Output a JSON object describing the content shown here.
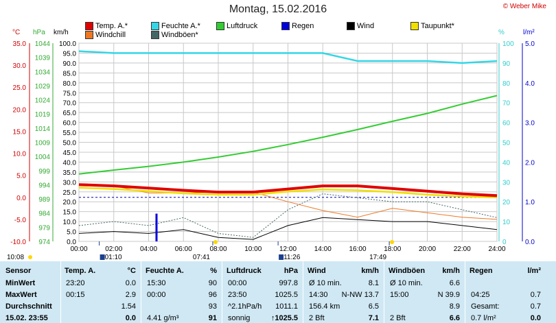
{
  "title": "Montag, 15.02.2016",
  "copyright": "© Weber Mike",
  "units": {
    "temp": "°C",
    "hpa": "hPa",
    "kmh": "km/h",
    "pct": "%",
    "lm2": "l/m²"
  },
  "legend": [
    {
      "label": "Temp. A.*",
      "color": "#e00000"
    },
    {
      "label": "Feuchte A.*",
      "color": "#33d6e6"
    },
    {
      "label": "Luftdruck",
      "color": "#33cc33"
    },
    {
      "label": "Regen",
      "color": "#0000dd"
    },
    {
      "label": "Wind",
      "color": "#000000"
    },
    {
      "label": "Taupunkt*",
      "color": "#f0e000"
    },
    {
      "label": "Windchill",
      "color": "#ee7722"
    },
    {
      "label": "Windböen*",
      "color": "#446666"
    }
  ],
  "axes": {
    "temp_ticks": [
      "35.0",
      "30.0",
      "25.0",
      "20.0",
      "15.0",
      "10.0",
      "5.0",
      "0.0",
      "-5.0",
      "-10.0"
    ],
    "hpa_ticks": [
      "1044",
      "1039",
      "1034",
      "1029",
      "1024",
      "1019",
      "1014",
      "1009",
      "1004",
      "999",
      "994",
      "989",
      "984",
      "979",
      "974"
    ],
    "kmh_ticks": [
      "100.0",
      "95.0",
      "90.0",
      "85.0",
      "80.0",
      "75.0",
      "70.0",
      "65.0",
      "60.0",
      "55.0",
      "50.0",
      "45.0",
      "40.0",
      "35.0",
      "30.0",
      "25.0",
      "20.0",
      "15.0",
      "10.0",
      "5.0",
      "0.0"
    ],
    "pct_ticks": [
      "100",
      "90",
      "80",
      "70",
      "60",
      "50",
      "40",
      "30",
      "20",
      "10",
      "0"
    ],
    "rain_ticks": [
      "5.0",
      "4.0",
      "3.0",
      "2.0",
      "1.0",
      "0.0"
    ],
    "x_ticks": [
      "00:00",
      "02:00",
      "04:00",
      "06:00",
      "08:00",
      "10:00",
      "12:00",
      "14:00",
      "16:00",
      "18:00",
      "20:00",
      "22:00",
      "24:00"
    ]
  },
  "events": {
    "sunrise": "07:41",
    "sunset": "17:49",
    "moonrise": "01:10",
    "moonset": "11:26",
    "daylength": "10:08"
  },
  "chart_data": {
    "type": "line",
    "title": "Montag, 15.02.2016",
    "x": [
      "00:00",
      "02:00",
      "04:00",
      "06:00",
      "08:00",
      "10:00",
      "12:00",
      "14:00",
      "16:00",
      "18:00",
      "20:00",
      "22:00",
      "24:00"
    ],
    "series": [
      {
        "name": "Temp. A.*",
        "axis": "°C",
        "values": [
          2.9,
          2.6,
          2.1,
          1.6,
          1.2,
          1.2,
          1.9,
          2.6,
          2.6,
          2.0,
          1.4,
          0.8,
          0.4
        ]
      },
      {
        "name": "Feuchte A.*",
        "axis": "%",
        "values": [
          96,
          95,
          95,
          95,
          95,
          95,
          95,
          95,
          91,
          91,
          91,
          90,
          91
        ]
      },
      {
        "name": "Luftdruck",
        "axis": "hPa",
        "values": [
          997.8,
          999.2,
          1000.5,
          1002.0,
          1003.8,
          1005.8,
          1008.2,
          1010.8,
          1013.5,
          1016.4,
          1019.2,
          1022.5,
          1025.5
        ]
      },
      {
        "name": "Taupunkt*",
        "axis": "°C",
        "values": [
          2.2,
          1.9,
          1.4,
          0.9,
          0.6,
          0.6,
          1.3,
          1.8,
          1.6,
          1.2,
          0.6,
          0.2,
          0.0
        ]
      },
      {
        "name": "Windchill",
        "axis": "°C",
        "values": [
          2.9,
          2.6,
          1.0,
          1.0,
          1.2,
          1.2,
          -1.0,
          -3.0,
          -4.5,
          -2.5,
          -3.5,
          -4.5,
          -5.0
        ]
      },
      {
        "name": "Wind",
        "axis": "km/h",
        "values": [
          4,
          5,
          4,
          6,
          2,
          1,
          8,
          12,
          11,
          10,
          10,
          8,
          6
        ]
      },
      {
        "name": "Windböen*",
        "axis": "km/h",
        "values": [
          8,
          10,
          8,
          12,
          4,
          2,
          16,
          24,
          22,
          20,
          20,
          16,
          12
        ]
      },
      {
        "name": "Regen",
        "axis": "l/m²",
        "values": [
          0,
          0,
          0.7,
          0,
          0,
          0,
          0,
          0,
          0,
          0,
          0,
          0,
          0
        ]
      }
    ],
    "ylim_temp": [
      -10,
      35
    ],
    "ylim_hpa": [
      974,
      1044
    ],
    "ylim_kmh": [
      0,
      100
    ],
    "ylim_pct": [
      0,
      100
    ],
    "ylim_rain": [
      0,
      5
    ]
  },
  "table": {
    "headers": [
      "Sensor",
      "Temp. A.",
      "°C",
      "Feuchte A.",
      "%",
      "Luftdruck",
      "hPa",
      "Wind",
      "km/h",
      "Windböen",
      "km/h",
      "Regen",
      "l/m²"
    ],
    "rows": [
      {
        "label": "MinWert",
        "t_time": "23:20",
        "t_val": "0.0",
        "h_time": "15:30",
        "h_val": "90",
        "p_time": "00:00",
        "p_val": "997.8",
        "w_a": "Ø 10 min.",
        "w_v": "8.1",
        "g_a": "Ø 10 min.",
        "g_v": "6.6",
        "r_a": "",
        "r_v": ""
      },
      {
        "label": "MaxWert",
        "t_time": "00:15",
        "t_val": "2.9",
        "h_time": "00:00",
        "h_val": "96",
        "p_time": "23:50",
        "p_val": "1025.5",
        "w_a": "14:30",
        "w_b": "N-NW 13.7",
        "w_v": "",
        "g_a": "15:00",
        "g_v": "N 39.9",
        "r_a": "04:25",
        "r_v": "0.7"
      },
      {
        "label": "Durchschnitt",
        "t_time": "",
        "t_val": "1.54",
        "h_time": "",
        "h_val": "93",
        "p_time": "^2.1hPa/h",
        "p_val": "1011.1",
        "w_a": "156.4 km",
        "w_v": "6.5",
        "g_a": "",
        "g_v": "8.9",
        "r_a": "Gesamt:",
        "r_v": "0.7"
      },
      {
        "label": "15.02. 23:55",
        "t_time": "",
        "t_val": "0.0",
        "h_time": "4.41 g/m³",
        "h_val": "91",
        "p_time": "sonnig",
        "p_val": "↑1025.5",
        "w_a": "2 Bft",
        "w_v": "7.1",
        "g_a": "2 Bft",
        "g_v": "6.6",
        "r_a": "0.7 l/m²",
        "r_v": "0.0"
      }
    ]
  }
}
